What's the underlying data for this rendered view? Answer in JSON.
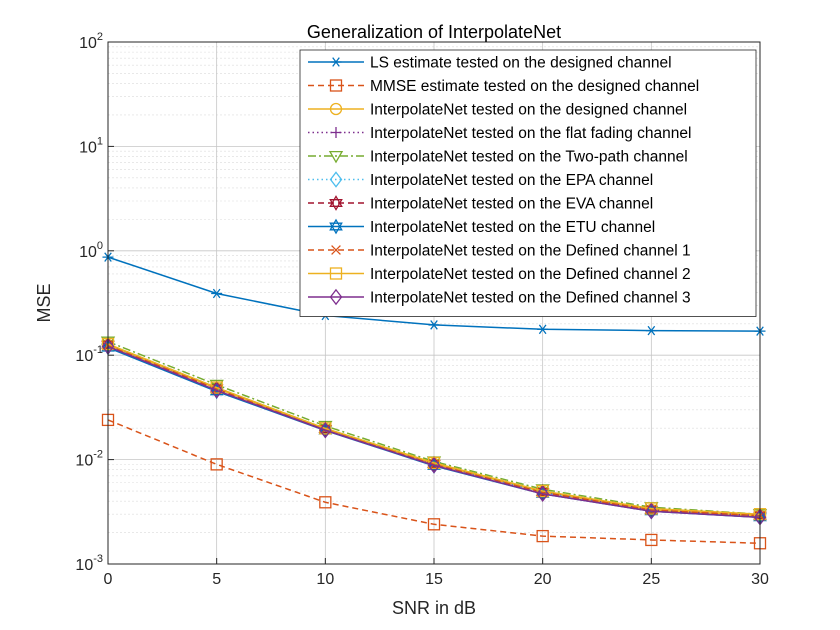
{
  "chart_data": {
    "type": "line",
    "title": "Generalization of InterpolateNet",
    "xlabel": "SNR in dB",
    "ylabel": "MSE",
    "yscale": "log",
    "xlim": [
      0,
      30
    ],
    "ylim": [
      0.001,
      100
    ],
    "grid": true,
    "legend_position": "top-right",
    "x": [
      0,
      5,
      10,
      15,
      20,
      25,
      30
    ],
    "x_ticks": [
      "0",
      "5",
      "10",
      "15",
      "20",
      "25",
      "30"
    ],
    "y_ticks": [
      {
        "value": 0.001,
        "base": "10",
        "exp": "-3"
      },
      {
        "value": 0.01,
        "base": "10",
        "exp": "-2"
      },
      {
        "value": 0.1,
        "base": "10",
        "exp": "-1"
      },
      {
        "value": 1,
        "base": "10",
        "exp": "0"
      },
      {
        "value": 10,
        "base": "10",
        "exp": "1"
      },
      {
        "value": 100,
        "base": "10",
        "exp": "2"
      }
    ],
    "series": [
      {
        "name": "LS estimate tested on the designed channel",
        "color": "#0072BD",
        "dash": "solid",
        "marker": "asterisk",
        "values": [
          0.87,
          0.39,
          0.24,
          0.195,
          0.177,
          0.172,
          0.17
        ]
      },
      {
        "name": "MMSE estimate tested on the designed channel",
        "color": "#D95319",
        "dash": "dashed",
        "marker": "square",
        "values": [
          0.024,
          0.009,
          0.0039,
          0.0024,
          0.00185,
          0.0017,
          0.00158
        ]
      },
      {
        "name": "InterpolateNet tested on the designed channel",
        "color": "#EDB120",
        "dash": "solid",
        "marker": "circle",
        "values": [
          0.125,
          0.048,
          0.0195,
          0.0091,
          0.0049,
          0.0033,
          0.0029
        ]
      },
      {
        "name": "InterpolateNet tested on the flat fading channel",
        "color": "#7E2F8E",
        "dash": "dotted",
        "marker": "plus",
        "values": [
          0.127,
          0.049,
          0.0198,
          0.0092,
          0.0049,
          0.0033,
          0.0029
        ]
      },
      {
        "name": "InterpolateNet tested on the Two-path channel",
        "color": "#77AC30",
        "dash": "dashdot",
        "marker": "triangle-down",
        "values": [
          0.135,
          0.052,
          0.021,
          0.0096,
          0.0052,
          0.0035,
          0.003
        ]
      },
      {
        "name": "InterpolateNet tested on the EPA channel",
        "color": "#4DBEEE",
        "dash": "dotted",
        "marker": "diamond",
        "values": [
          0.122,
          0.046,
          0.0192,
          0.0088,
          0.0048,
          0.0032,
          0.0028
        ]
      },
      {
        "name": "InterpolateNet tested on the EVA channel",
        "color": "#A2142F",
        "dash": "dashed",
        "marker": "hexagram",
        "values": [
          0.126,
          0.048,
          0.0196,
          0.0091,
          0.0049,
          0.0033,
          0.0029
        ]
      },
      {
        "name": "InterpolateNet tested on the ETU channel",
        "color": "#0072BD",
        "dash": "solid",
        "marker": "hexagram",
        "values": [
          0.118,
          0.045,
          0.019,
          0.0087,
          0.0047,
          0.0032,
          0.0028
        ]
      },
      {
        "name": "InterpolateNet tested on the Defined channel 1",
        "color": "#D95319",
        "dash": "dashed",
        "marker": "x",
        "values": [
          0.124,
          0.047,
          0.0194,
          0.009,
          0.0048,
          0.0033,
          0.0029
        ]
      },
      {
        "name": "InterpolateNet tested on the Defined channel 2",
        "color": "#EDB120",
        "dash": "solid",
        "marker": "square",
        "values": [
          0.128,
          0.049,
          0.0199,
          0.0093,
          0.005,
          0.0034,
          0.003
        ]
      },
      {
        "name": "InterpolateNet tested on the Defined channel 3",
        "color": "#7E2F8E",
        "dash": "solid",
        "marker": "diamond",
        "values": [
          0.121,
          0.046,
          0.0191,
          0.0088,
          0.0047,
          0.0032,
          0.0028
        ]
      }
    ]
  }
}
